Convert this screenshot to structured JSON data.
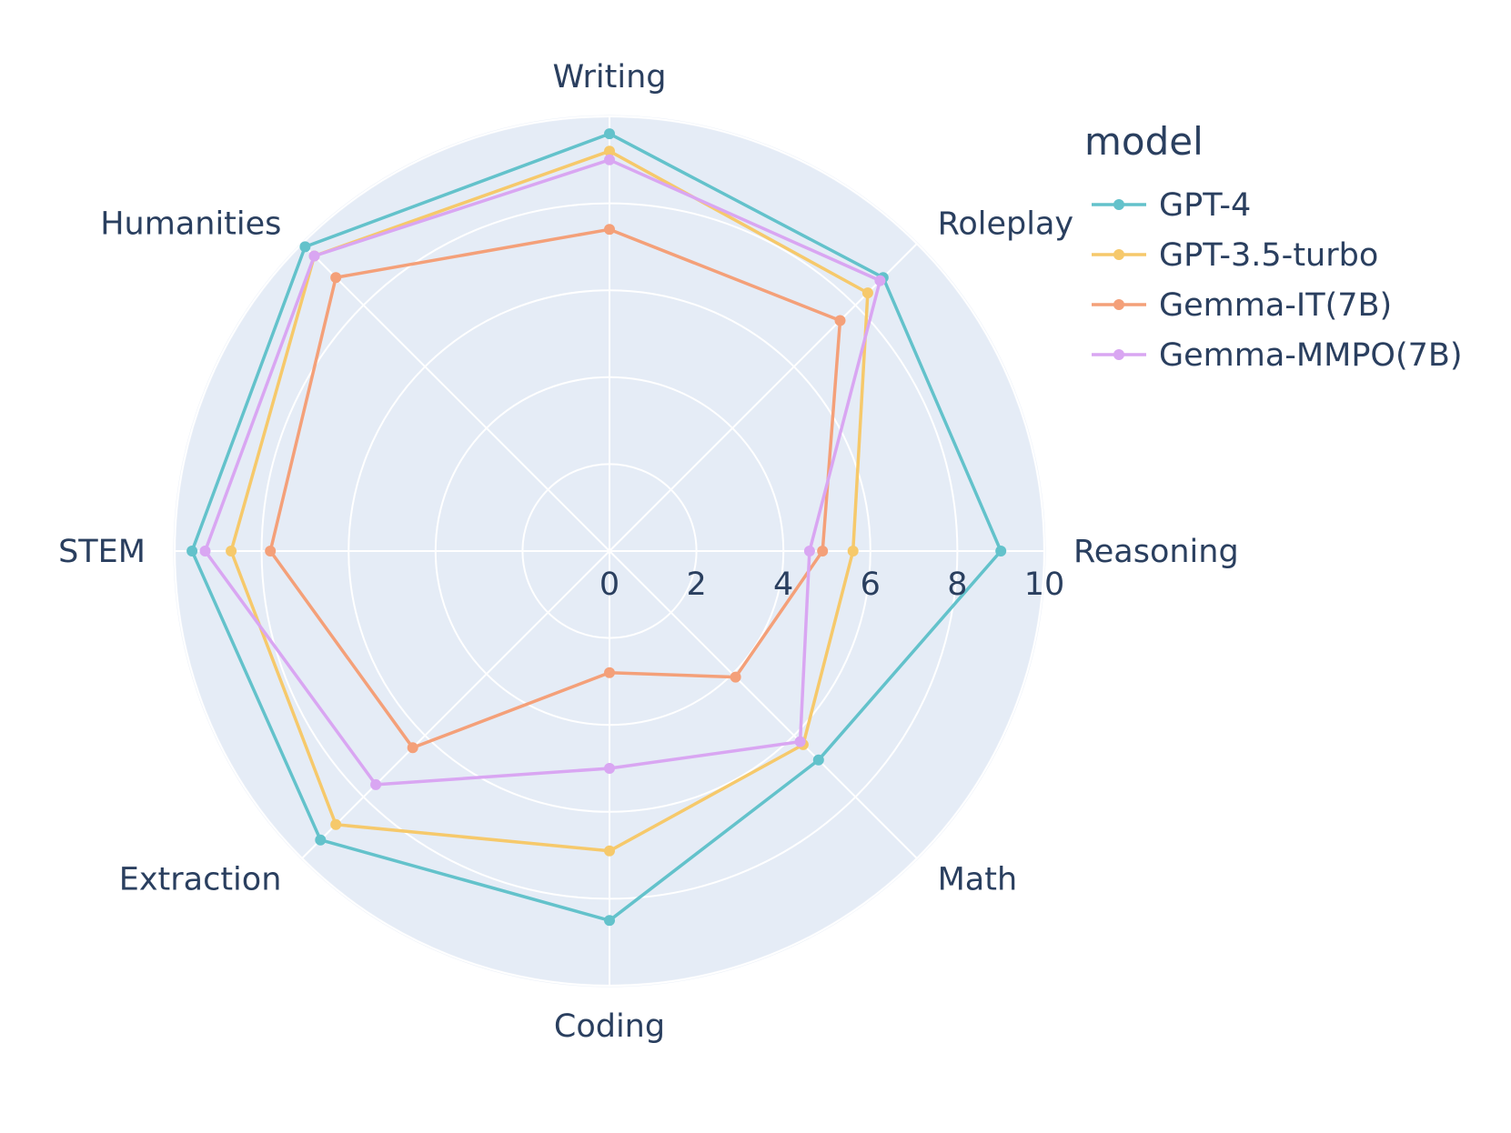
{
  "chart_data": {
    "type": "radar",
    "categories": [
      "Writing",
      "Roleplay",
      "Reasoning",
      "Math",
      "Coding",
      "Extraction",
      "STEM",
      "Humanities"
    ],
    "radial_range": [
      0,
      10
    ],
    "radial_ticks": [
      0,
      2,
      4,
      6,
      8,
      10
    ],
    "grid": true,
    "legend": {
      "title": "model",
      "position": "top-right"
    },
    "series": [
      {
        "name": "GPT-4",
        "color": "#63c2cb",
        "values": [
          9.6,
          8.9,
          9.0,
          6.8,
          8.5,
          9.4,
          9.6,
          9.9
        ]
      },
      {
        "name": "GPT-3.5-turbo",
        "color": "#f6c96b",
        "values": [
          9.2,
          8.4,
          5.6,
          6.3,
          6.9,
          8.9,
          8.7,
          9.6
        ]
      },
      {
        "name": "Gemma-IT(7B)",
        "color": "#f4a079",
        "values": [
          7.4,
          7.5,
          4.9,
          4.1,
          2.8,
          6.4,
          7.8,
          8.9
        ]
      },
      {
        "name": "Gemma-MMPO(7B)",
        "color": "#d9a6f2",
        "values": [
          9.0,
          8.8,
          4.6,
          6.2,
          5.0,
          7.6,
          9.3,
          9.6
        ]
      }
    ]
  }
}
